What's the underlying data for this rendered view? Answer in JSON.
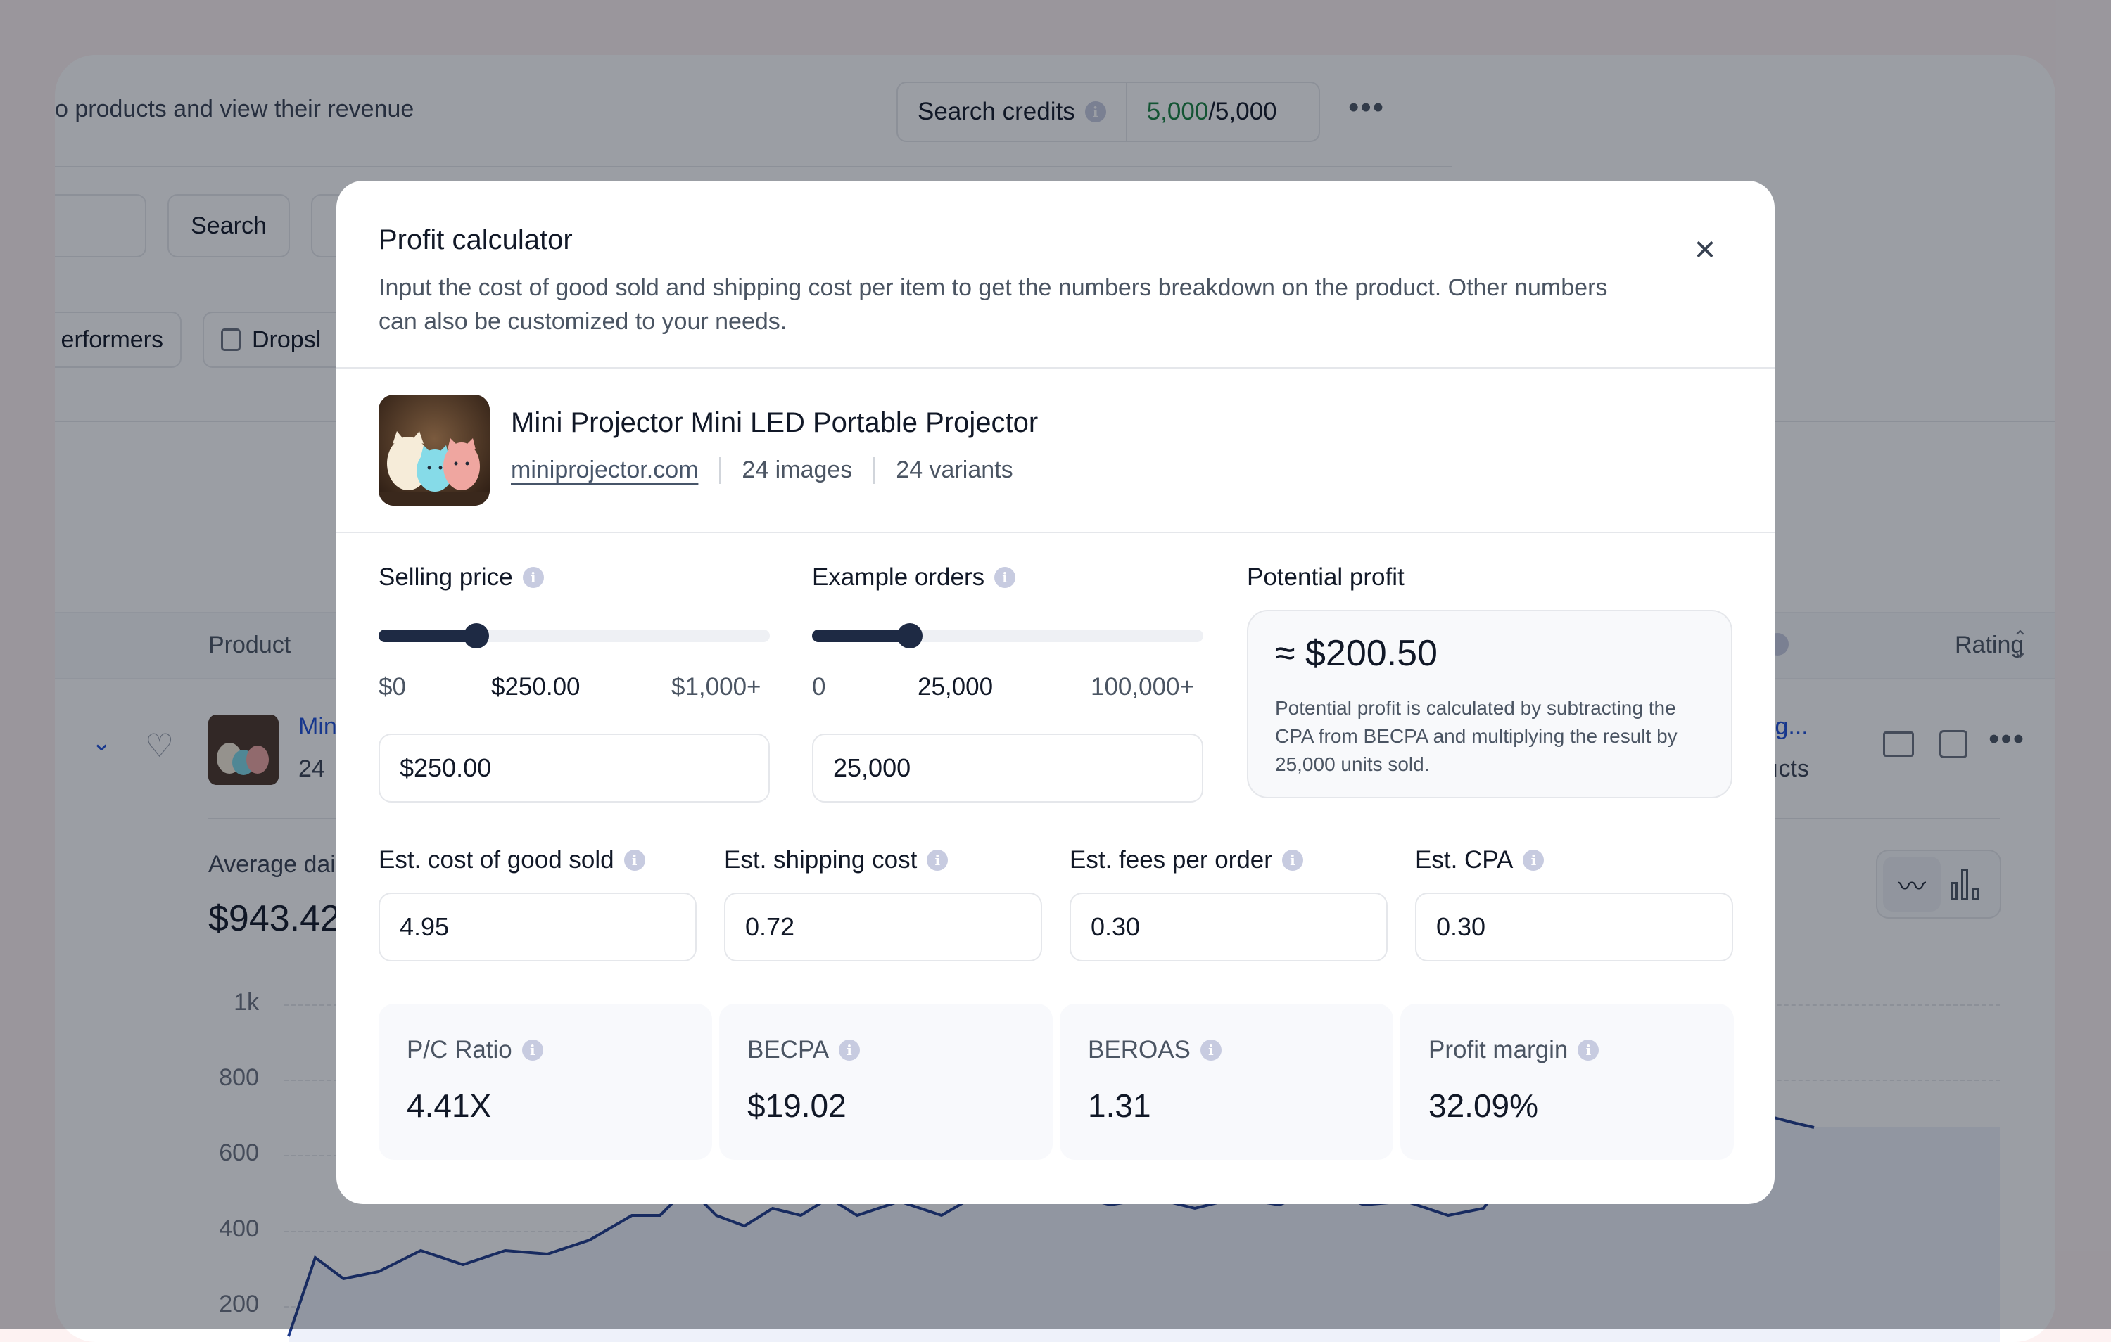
{
  "background": {
    "subtitle": "o products and view their revenue",
    "search_credits": {
      "label": "Search credits",
      "used": "5,000",
      "total": "/5,000"
    },
    "search_button": "Search",
    "filter_top_performers": "erformers",
    "filter_dropshipping": "Dropsl",
    "table": {
      "col_product": "Product",
      "col_rating": "Rating",
      "row_title_partial": "Min",
      "row_sub_partial": "24",
      "row_right_link": "ing...",
      "row_right_sub": "ıcts"
    },
    "stats": {
      "label": "Average dai",
      "value": "$943.42"
    },
    "chart_data": {
      "type": "line",
      "y_ticks": [
        "1k",
        "800",
        "600",
        "400",
        "200"
      ],
      "ylim": [
        0,
        1000
      ]
    }
  },
  "modal": {
    "title": "Profit calculator",
    "description": "Input the cost of good sold and shipping cost per item to get the numbers breakdown on the product. Other numbers can also be customized to your needs.",
    "product": {
      "name": "Mini Projector Mini LED Portable Projector",
      "link": "miniprojector.com",
      "images": "24 images",
      "variants": "24 variants"
    },
    "selling_price": {
      "label": "Selling price",
      "min_label": "$0",
      "current_label": "$250.00",
      "max_label": "$1,000+",
      "input_value": "$250.00",
      "fraction": 0.25
    },
    "example_orders": {
      "label": "Example orders",
      "min_label": "0",
      "current_label": "25,000",
      "max_label": "100,000+",
      "input_value": "25,000",
      "fraction": 0.25
    },
    "potential_profit": {
      "label": "Potential profit",
      "value": "≈ $200.50",
      "note": "Potential profit is calculated by subtracting the CPA from BECPA and multiplying the result by 25,000 units sold."
    },
    "costs": {
      "cogs": {
        "label": "Est. cost of good sold",
        "value": "4.95"
      },
      "shipping": {
        "label": "Est. shipping cost",
        "value": "0.72"
      },
      "fees": {
        "label": "Est. fees per order",
        "value": "0.30"
      },
      "cpa": {
        "label": "Est. CPA",
        "value": "0.30"
      }
    },
    "metrics": {
      "pc_ratio": {
        "label": "P/C Ratio",
        "value": "4.41X"
      },
      "becpa": {
        "label": "BECPA",
        "value": "$19.02"
      },
      "beroas": {
        "label": "BEROAS",
        "value": "1.31"
      },
      "profit_margin": {
        "label": "Profit margin",
        "value": "32.09%"
      }
    },
    "colors": {
      "slider": "#1e2a44",
      "accent_green": "#15803d"
    }
  }
}
